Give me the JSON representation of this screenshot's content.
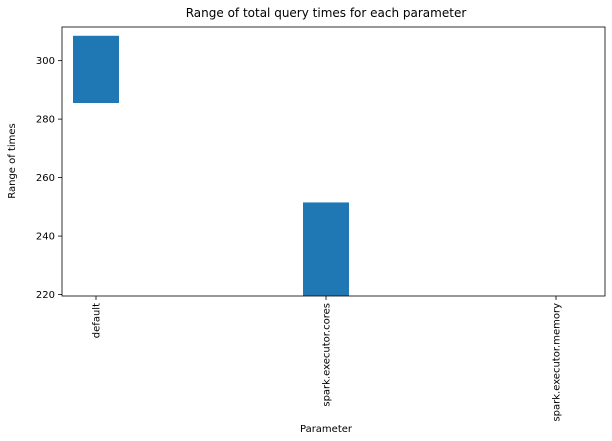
{
  "chart_data": {
    "type": "bar",
    "title": "Range of total query times for each parameter",
    "xlabel": "Parameter",
    "ylabel": "Range of times",
    "categories": [
      "default",
      "spark.executor.cores",
      "spark.executor.memory"
    ],
    "bars": [
      {
        "category": "default",
        "low": 285.5,
        "high": 308.5
      },
      {
        "category": "spark.executor.cores",
        "low": 219.5,
        "high": 251.5
      },
      {
        "category": "spark.executor.memory",
        "low": 219.5,
        "high": 219.5
      }
    ],
    "ylim": [
      219.5,
      311.5
    ],
    "yticks": [
      220,
      240,
      260,
      280,
      300
    ],
    "grid": false,
    "bar_color": "#1f77b4"
  }
}
